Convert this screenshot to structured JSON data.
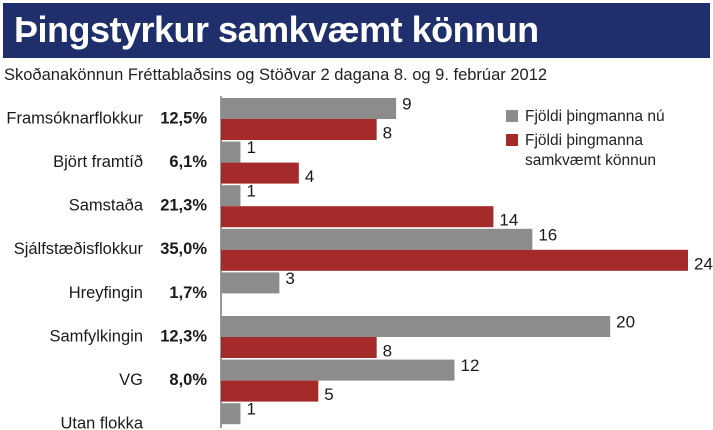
{
  "title": "Þingstyrkur samkvæmt könnun",
  "subtitle": "Skoðanakönnun Fréttablaðsins og Stöðvar 2 dagana 8. og 9. febrúar 2012",
  "colors": {
    "title_bg": "#1f2f6b",
    "current": "#8c8c8c",
    "poll": "#a52a2a"
  },
  "chart_data": {
    "type": "bar",
    "orientation": "horizontal",
    "title": "Þingstyrkur samkvæmt könnun",
    "subtitle": "Skoðanakönnun Fréttablaðsins og Stöðvar 2 dagana 8. og 9. febrúar 2012",
    "categories": [
      "Framsóknarflokkur",
      "Björt framtíð",
      "Samstaða",
      "Sjálfstæðisflokkur",
      "Hreyfingin",
      "Samfylkingin",
      "VG",
      "Utan flokka"
    ],
    "percentages": [
      "12,5%",
      "6,1%",
      "21,3%",
      "35,0%",
      "1,7%",
      "12,3%",
      "8,0%",
      ""
    ],
    "series": [
      {
        "name": "Fjöldi þingmanna nú",
        "color": "#8c8c8c",
        "values": [
          9,
          1,
          1,
          16,
          3,
          20,
          12,
          1
        ]
      },
      {
        "name": "Fjöldi þingmanna samkvæmt könnun",
        "color": "#a52a2a",
        "values": [
          8,
          4,
          14,
          24,
          null,
          8,
          5,
          null
        ]
      }
    ],
    "legend": {
      "position": "top-right",
      "entries": [
        {
          "lines": [
            "Fjöldi þingmanna nú"
          ],
          "color": "#8c8c8c"
        },
        {
          "lines": [
            "Fjöldi þingmanna",
            "samkvæmt könnun"
          ],
          "color": "#a52a2a"
        }
      ]
    },
    "xlim": [
      0,
      24
    ],
    "grid": false
  }
}
